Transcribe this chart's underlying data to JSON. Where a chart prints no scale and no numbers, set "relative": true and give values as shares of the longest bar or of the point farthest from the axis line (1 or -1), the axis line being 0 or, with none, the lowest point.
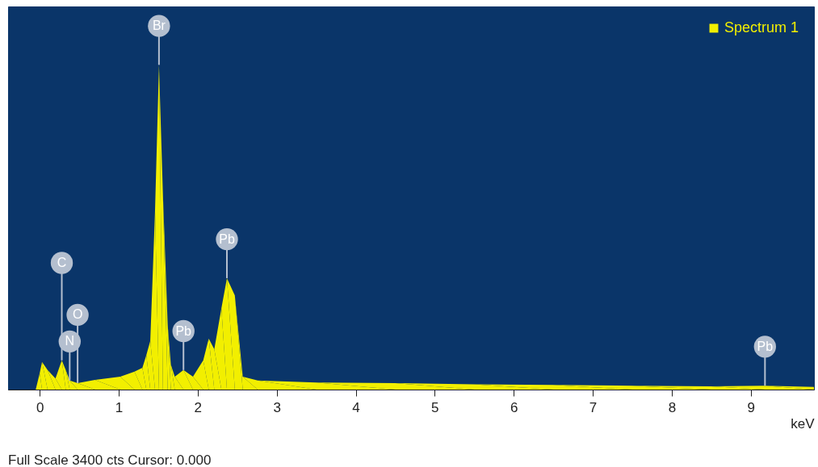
{
  "chart_data": {
    "type": "area",
    "relative": true,
    "xlabel": "keV",
    "legend": "top right",
    "xlim": [
      -0.4,
      9.8
    ],
    "xticks": [
      0,
      1,
      2,
      3,
      4,
      5,
      6,
      7,
      8,
      9
    ],
    "series": [
      {
        "name": "Spectrum 1",
        "color": "#f2ef00",
        "x": [
          -0.05,
          0.0,
          0.03,
          0.1,
          0.2,
          0.28,
          0.33,
          0.38,
          0.48,
          0.7,
          1.02,
          1.2,
          1.3,
          1.35,
          1.4,
          1.46,
          1.51,
          1.56,
          1.62,
          1.66,
          1.71,
          1.82,
          1.94,
          2.07,
          2.14,
          2.21,
          2.3,
          2.37,
          2.47,
          2.57,
          2.76,
          3.5,
          4.5,
          5.5,
          6.5,
          7.5,
          8.5,
          9.18,
          9.8
        ],
        "values": [
          0,
          0.05,
          0.085,
          0.06,
          0.034,
          0.09,
          0.06,
          0.028,
          0.02,
          0.03,
          0.04,
          0.055,
          0.067,
          0.106,
          0.15,
          0.55,
          1.0,
          0.6,
          0.2,
          0.077,
          0.04,
          0.06,
          0.04,
          0.09,
          0.157,
          0.124,
          0.25,
          0.343,
          0.29,
          0.04,
          0.028,
          0.022,
          0.02,
          0.016,
          0.014,
          0.012,
          0.01,
          0.012,
          0.008
        ]
      }
    ],
    "annotations": [
      {
        "text": "C",
        "x": 0.28,
        "y": 0.09
      },
      {
        "text": "O",
        "x": 0.48,
        "y": 0.02
      },
      {
        "text": "N",
        "x": 0.38,
        "y": 0.028
      },
      {
        "text": "Br",
        "x": 1.51,
        "y": 1.0
      },
      {
        "text": "Pb",
        "x": 1.82,
        "y": 0.06
      },
      {
        "text": "Pb",
        "x": 2.37,
        "y": 0.343
      },
      {
        "text": "Pb",
        "x": 9.18,
        "y": 0.012
      },
      "Full Scale 3400 cts Cursor: 0.000"
    ]
  }
}
